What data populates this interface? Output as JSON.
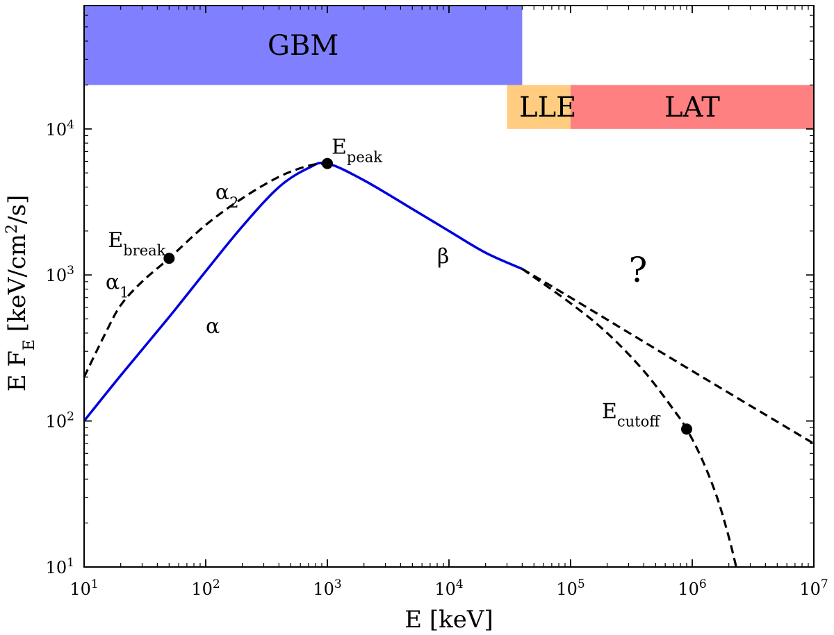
{
  "chart_data": {
    "type": "line",
    "x_scale": "log",
    "y_scale": "log",
    "xlim": [
      10,
      10000000
    ],
    "ylim": [
      10,
      70000
    ],
    "xlabel": "E [keV]",
    "ylabel": "E F_E [keV/cm^2/s]",
    "ylabel_parts": {
      "main": "E F",
      "sub": "E",
      "units": "[keV/cm",
      "sup": "2",
      "units_end": "/s]"
    },
    "grid": false,
    "x_ticks": [
      {
        "value": 10,
        "base": "10",
        "exp": "1"
      },
      {
        "value": 100,
        "base": "10",
        "exp": "2"
      },
      {
        "value": 1000,
        "base": "10",
        "exp": "3"
      },
      {
        "value": 10000,
        "base": "10",
        "exp": "4"
      },
      {
        "value": 100000,
        "base": "10",
        "exp": "5"
      },
      {
        "value": 1000000,
        "base": "10",
        "exp": "6"
      },
      {
        "value": 10000000,
        "base": "10",
        "exp": "7"
      }
    ],
    "y_ticks": [
      {
        "value": 10,
        "base": "10",
        "exp": "1"
      },
      {
        "value": 100,
        "base": "10",
        "exp": "2"
      },
      {
        "value": 1000,
        "base": "10",
        "exp": "3"
      },
      {
        "value": 10000,
        "base": "10",
        "exp": "4"
      }
    ],
    "bands": [
      {
        "name": "GBM",
        "x": [
          10,
          40000
        ],
        "y": [
          20000,
          70000
        ],
        "color": "#8080ff"
      },
      {
        "name": "LLE",
        "x": [
          30000,
          100000
        ],
        "y": [
          10000,
          20000
        ],
        "color": "#ffcc80"
      },
      {
        "name": "LAT",
        "x": [
          100000,
          10000000
        ],
        "y": [
          10000,
          20000
        ],
        "color": "#ff8080"
      }
    ],
    "series": [
      {
        "style": "solid",
        "color": "#0000dd",
        "x": [
          10,
          20,
          50,
          100,
          200,
          400,
          700,
          1000,
          2000,
          5000,
          10000,
          20000,
          40000
        ],
        "y": [
          100,
          205,
          515,
          1060,
          2150,
          4000,
          5400,
          5800,
          4450,
          2830,
          2000,
          1420,
          1100
        ]
      },
      {
        "style": "dashed",
        "color": "#000000",
        "x": [
          10,
          15,
          20,
          30,
          50,
          100,
          200,
          400,
          700,
          1000
        ],
        "y": [
          200,
          400,
          620,
          900,
          1300,
          2200,
          3350,
          4700,
          5600,
          5800
        ]
      },
      {
        "style": "dashed",
        "color": "#000000",
        "x": [
          40000,
          100000,
          1000000,
          10000000
        ],
        "y": [
          1100,
          700,
          220,
          70
        ]
      },
      {
        "style": "dashed",
        "color": "#000000",
        "x": [
          40000,
          100000,
          200000,
          400000,
          700000,
          900000,
          1200000,
          1600000,
          2000000,
          2300000
        ],
        "y": [
          1100,
          640,
          400,
          220,
          120,
          88,
          55,
          30,
          16,
          10
        ]
      }
    ],
    "points": [
      {
        "x": 50,
        "y": 1300
      },
      {
        "x": 1000,
        "y": 5800
      },
      {
        "x": 900000,
        "y": 88
      }
    ],
    "annotations": [
      {
        "id": "epeak",
        "text": "E",
        "sub": "peak",
        "x": 1000,
        "y": 5800
      },
      {
        "id": "ebreak",
        "text": "E",
        "sub": "break",
        "x": 50,
        "y": 1300
      },
      {
        "id": "ecutoff",
        "text": "E",
        "sub": "cutoff",
        "x": 900000,
        "y": 88
      },
      {
        "id": "alpha1",
        "text": "α",
        "sub": "1",
        "x": 15,
        "y": 800
      },
      {
        "id": "alpha2",
        "text": "α",
        "sub": "2",
        "x": 120,
        "y": 3300
      },
      {
        "id": "alpha",
        "text": "α",
        "sub": "",
        "x": 100,
        "y": 400
      },
      {
        "id": "beta",
        "text": "β",
        "sub": "",
        "x": 8000,
        "y": 1200
      },
      {
        "id": "question",
        "text": "?",
        "sub": "",
        "x": 300000,
        "y": 900
      }
    ]
  }
}
